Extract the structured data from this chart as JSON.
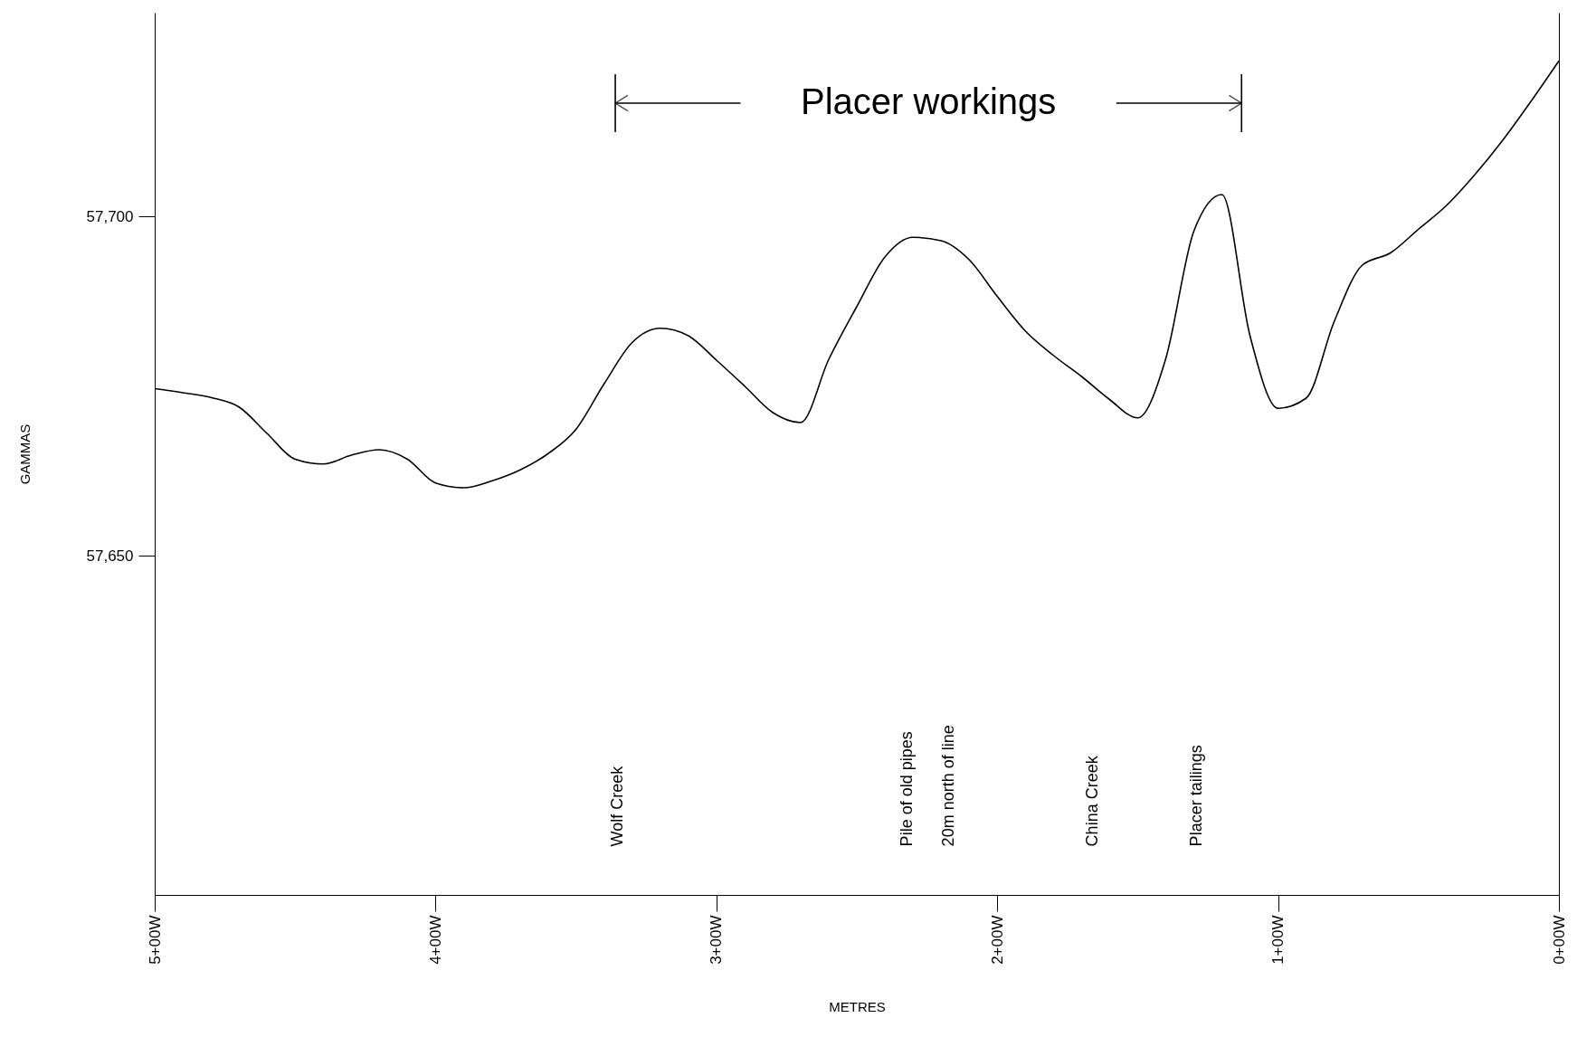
{
  "chart_data": {
    "type": "line",
    "xlabel": "METRES",
    "ylabel": "GAMMAS",
    "categories": [
      "5+00W",
      null,
      null,
      null,
      null,
      null,
      null,
      null,
      null,
      null,
      "4+00W",
      null,
      null,
      null,
      null,
      null,
      null,
      null,
      null,
      null,
      "3+00W",
      null,
      null,
      null,
      null,
      null,
      null,
      null,
      null,
      null,
      "2+00W",
      null,
      null,
      null,
      null,
      null,
      null,
      null,
      null,
      null,
      "1+00W",
      null,
      null,
      null,
      null,
      null,
      null,
      null,
      null,
      null,
      "0+00W"
    ],
    "ylim": [
      57600,
      57730
    ],
    "yticks": [
      {
        "value": 57650,
        "label": "57,650"
      },
      {
        "value": 57700,
        "label": "57,700"
      }
    ],
    "grid": false,
    "series": [
      {
        "color": "#000000",
        "values": [
          57674.6,
          57674.0,
          57673.3,
          57671.9,
          57668.0,
          57664.2,
          57663.5,
          57664.8,
          57665.6,
          57664.2,
          57660.7,
          57660.0,
          57661.0,
          57662.6,
          57665.0,
          57668.6,
          57675.3,
          57681.4,
          57683.5,
          57682.4,
          57678.8,
          57675.0,
          57671.1,
          57669.6,
          57678.9,
          57686.7,
          57694.0,
          57696.9,
          57696.4,
          57693.6,
          57688.2,
          57683.1,
          57679.5,
          57676.4,
          57673.0,
          57670.3,
          57679.0,
          57697.8,
          57703.2,
          57682.4,
          57671.7,
          57673.2,
          57684.5,
          57692.8,
          57694.6,
          57698.1,
          57701.6,
          57706.1,
          57711.2,
          57716.9,
          57722.9
        ]
      }
    ],
    "annotations": [
      "Placer workings",
      "Wolf Creek",
      "Pile of old pipes",
      "20m north of line",
      "China Creek",
      "Placer tailings"
    ]
  }
}
